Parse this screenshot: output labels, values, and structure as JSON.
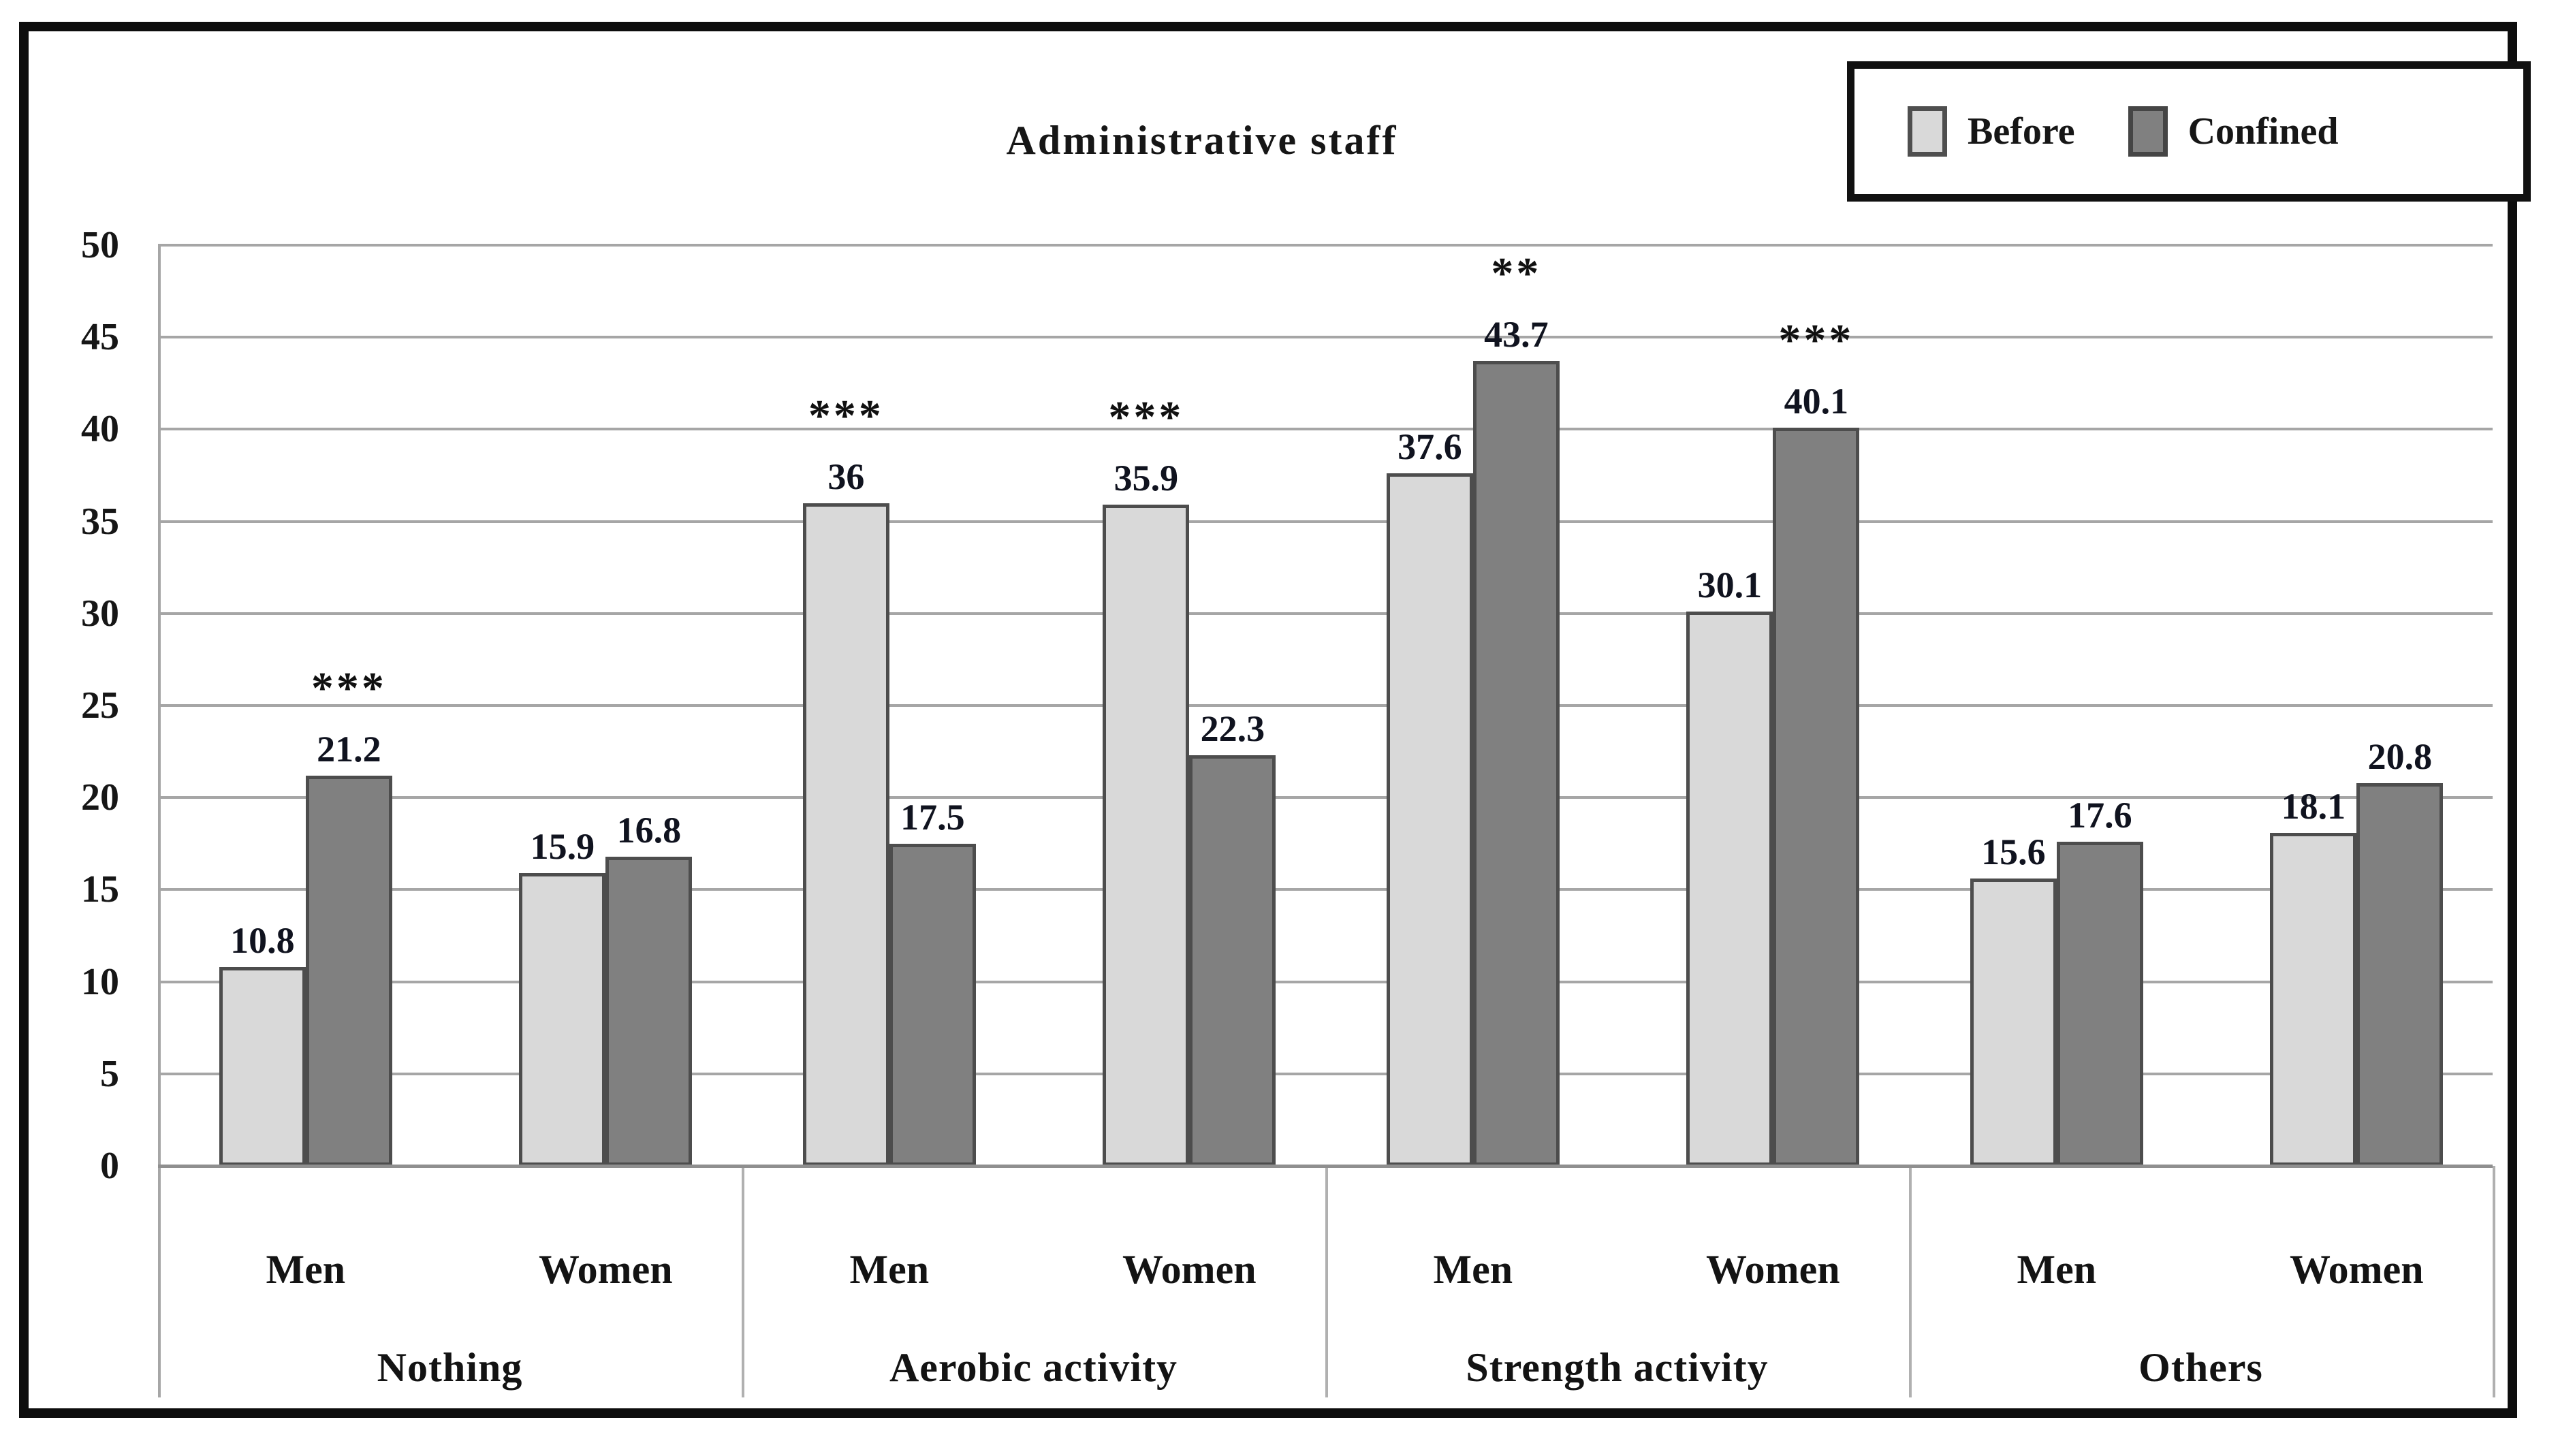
{
  "figure": {
    "title": "Administrative staff"
  },
  "legend": {
    "items": [
      {
        "label": "Before",
        "color": "#d9d9d9"
      },
      {
        "label": "Confined",
        "color": "#808080"
      }
    ]
  },
  "chart_data": {
    "type": "bar",
    "title": "Administrative staff",
    "xlabel": "",
    "ylabel": "",
    "ylim": [
      0,
      50
    ],
    "yticks": [
      50,
      45,
      40,
      35,
      30,
      25,
      20,
      15,
      10,
      5,
      0
    ],
    "grid": true,
    "legend_position": "top-right",
    "series_names": [
      "Before",
      "Confined"
    ],
    "groups": [
      {
        "label": "Nothing",
        "subgroups": [
          {
            "label": "Men",
            "before": 10.8,
            "confined": 21.2,
            "sig": "***"
          },
          {
            "label": "Women",
            "before": 15.9,
            "confined": 16.8,
            "sig": ""
          }
        ]
      },
      {
        "label": "Aerobic activity",
        "subgroups": [
          {
            "label": "Men",
            "before": 36,
            "confined": 17.5,
            "sig": "***"
          },
          {
            "label": "Women",
            "before": 35.9,
            "confined": 22.3,
            "sig": "***"
          }
        ]
      },
      {
        "label": "Strength activity",
        "subgroups": [
          {
            "label": "Men",
            "before": 37.6,
            "confined": 43.7,
            "sig": "**"
          },
          {
            "label": "Women",
            "before": 30.1,
            "confined": 40.1,
            "sig": "***"
          }
        ]
      },
      {
        "label": "Others",
        "subgroups": [
          {
            "label": "Men",
            "before": 15.6,
            "confined": 17.6,
            "sig": ""
          },
          {
            "label": "Women",
            "before": 18.1,
            "confined": 20.8,
            "sig": ""
          }
        ]
      }
    ],
    "colors": {
      "before_fill": "#d9d9d9",
      "confined_fill": "#808080",
      "bar_border": "#4d4d4d",
      "gridline": "#a6a6a6",
      "text": "#161616"
    }
  }
}
